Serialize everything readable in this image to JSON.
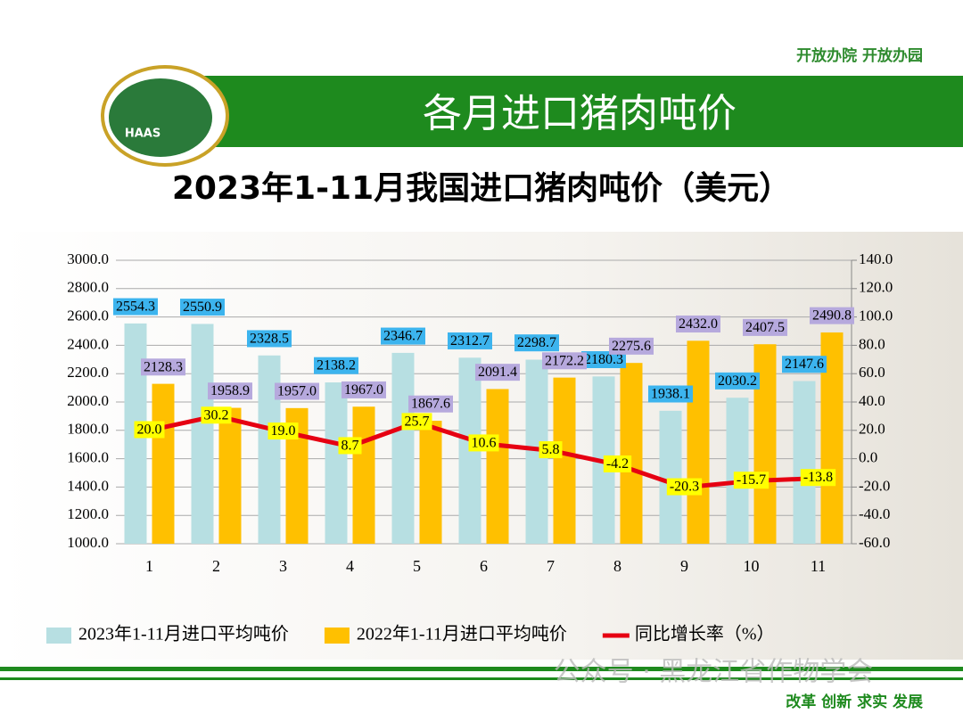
{
  "header": {
    "slogan": "开放办院  开放办园",
    "title": "各月进口猪肉吨价",
    "logo_text": "HAAS"
  },
  "footer": {
    "watermark": "公众号 · 黑龙江省作物学会",
    "motto": "改革 创新 求实  发展"
  },
  "chart_data": {
    "type": "bar",
    "title": "2023年1-11月我国进口猪肉吨价（美元）",
    "categories": [
      "1",
      "2",
      "3",
      "4",
      "5",
      "6",
      "7",
      "8",
      "9",
      "10",
      "11"
    ],
    "series": [
      {
        "name": "2023年1-11月进口平均吨价",
        "color": "#b7dfe2",
        "label_color": "#3cb4ee",
        "values": [
          2554.3,
          2550.9,
          2328.5,
          2138.2,
          2346.7,
          2312.7,
          2298.7,
          2180.3,
          1938.1,
          2030.2,
          2147.6
        ],
        "value_labels": [
          "2554.3",
          "2550.9",
          "2328.5",
          "2138.2",
          "2346.7",
          "2312.7",
          "2298.7",
          "2180.3",
          "1938.1",
          "2030.2",
          "2147.6"
        ]
      },
      {
        "name": "2022年1-11月进口平均吨价",
        "color": "#ffc000",
        "label_color": "#b6a9dd",
        "values": [
          2128.3,
          1958.9,
          1957.0,
          1967.0,
          1867.6,
          2091.4,
          2172.2,
          2275.6,
          2432.0,
          2407.5,
          2490.8
        ],
        "value_labels": [
          "2128.3",
          "1958.9",
          "1957.0",
          "1967.0",
          "1867.6",
          "2091.4",
          "2172.2",
          "2275.6",
          "2432.0",
          "2407.5",
          "2490.8"
        ]
      },
      {
        "name": "同比增长率（%）",
        "type": "line",
        "axis": "y2",
        "color": "#e60012",
        "label_color": "#ffff00",
        "values": [
          20.0,
          30.2,
          19.0,
          8.7,
          25.7,
          10.6,
          5.8,
          -4.2,
          -20.3,
          -15.7,
          -13.8
        ],
        "value_labels": [
          "20.0",
          "30.2",
          "19.0",
          "8.7",
          "25.7",
          "10.6",
          "5.8",
          "-4.2",
          "-20.3",
          "-15.7",
          "-13.8"
        ]
      }
    ],
    "ylim": [
      1000,
      3000
    ],
    "yticks": [
      {
        "value": 1000,
        "label": "1000.0"
      },
      {
        "value": 1200,
        "label": "1200.0"
      },
      {
        "value": 1400,
        "label": "1400.0"
      },
      {
        "value": 1600,
        "label": "1600.0"
      },
      {
        "value": 1800,
        "label": "1800.0"
      },
      {
        "value": 2000,
        "label": "2000.0"
      },
      {
        "value": 2200,
        "label": "2200.0"
      },
      {
        "value": 2400,
        "label": "2400.0"
      },
      {
        "value": 2600,
        "label": "2600.0"
      },
      {
        "value": 2800,
        "label": "2800.0"
      },
      {
        "value": 3000,
        "label": "3000.0"
      }
    ],
    "y2lim": [
      -60,
      140
    ],
    "y2ticks": [
      {
        "value": -60,
        "label": "-60.0"
      },
      {
        "value": -40,
        "label": "-40.0"
      },
      {
        "value": -20,
        "label": "-20.0"
      },
      {
        "value": 0,
        "label": "0.0"
      },
      {
        "value": 20,
        "label": "20.0"
      },
      {
        "value": 40,
        "label": "40.0"
      },
      {
        "value": 60,
        "label": "60.0"
      },
      {
        "value": 80,
        "label": "80.0"
      },
      {
        "value": 100,
        "label": "100.0"
      },
      {
        "value": 120,
        "label": "120.0"
      },
      {
        "value": 140,
        "label": "140.0"
      }
    ],
    "grid": true,
    "legend": "bottom"
  }
}
